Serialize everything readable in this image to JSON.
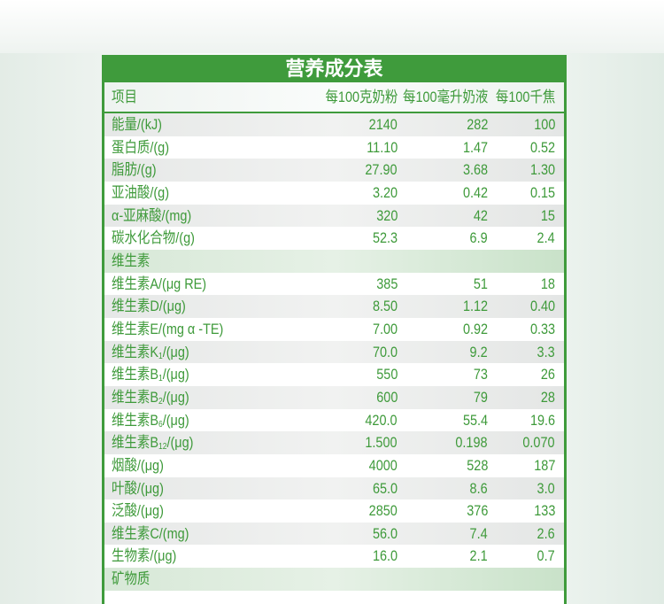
{
  "title": "营养成分表",
  "header": {
    "item": "项目",
    "per100g": "每100克奶粉",
    "per100ml": "每100毫升奶液",
    "per100kj": "每100千焦"
  },
  "rows": [
    {
      "type": "data",
      "label": "能量/(kJ)",
      "v1": "2140",
      "v2": "282",
      "v3": "100"
    },
    {
      "type": "data",
      "label": "蛋白质/(g)",
      "v1": "11.10",
      "v2": "1.47",
      "v3": "0.52"
    },
    {
      "type": "data",
      "label": "脂肪/(g)",
      "v1": "27.90",
      "v2": "3.68",
      "v3": "1.30"
    },
    {
      "type": "data",
      "label": "亚油酸/(g)",
      "v1": "3.20",
      "v2": "0.42",
      "v3": "0.15"
    },
    {
      "type": "data",
      "label": "α-亚麻酸/(mg)",
      "v1": "320",
      "v2": "42",
      "v3": "15"
    },
    {
      "type": "data",
      "label": "碳水化合物/(g)",
      "v1": "52.3",
      "v2": "6.9",
      "v3": "2.4"
    },
    {
      "type": "section",
      "label": "维生素"
    },
    {
      "type": "data",
      "label": "维生素A/(μg RE)",
      "v1": "385",
      "v2": "51",
      "v3": "18"
    },
    {
      "type": "data",
      "label": "维生素D/(μg)",
      "v1": "8.50",
      "v2": "1.12",
      "v3": "0.40"
    },
    {
      "type": "data",
      "label": "维生素E/(mg α -TE)",
      "v1": "7.00",
      "v2": "0.92",
      "v3": "0.33"
    },
    {
      "type": "data",
      "label": "维生素K",
      "sub": "1",
      "unit": "/(μg)",
      "v1": "70.0",
      "v2": "9.2",
      "v3": "3.3"
    },
    {
      "type": "data",
      "label": "维生素B",
      "sub": "1",
      "unit": "/(μg)",
      "v1": "550",
      "v2": "73",
      "v3": "26"
    },
    {
      "type": "data",
      "label": "维生素B",
      "sub": "2",
      "unit": "/(μg)",
      "v1": "600",
      "v2": "79",
      "v3": "28"
    },
    {
      "type": "data",
      "label": "维生素B",
      "sub": "6",
      "unit": "/(μg)",
      "v1": "420.0",
      "v2": "55.4",
      "v3": "19.6"
    },
    {
      "type": "data",
      "label": "维生素B",
      "sub": "12",
      "unit": "/(μg)",
      "v1": "1.500",
      "v2": "0.198",
      "v3": "0.070"
    },
    {
      "type": "data",
      "label": "烟酸/(μg)",
      "v1": "4000",
      "v2": "528",
      "v3": "187"
    },
    {
      "type": "data",
      "label": "叶酸/(μg)",
      "v1": "65.0",
      "v2": "8.6",
      "v3": "3.0"
    },
    {
      "type": "data",
      "label": "泛酸/(μg)",
      "v1": "2850",
      "v2": "376",
      "v3": "133"
    },
    {
      "type": "data",
      "label": "维生素C/(mg)",
      "v1": "56.0",
      "v2": "7.4",
      "v3": "2.6"
    },
    {
      "type": "data",
      "label": "生物素/(μg)",
      "v1": "16.0",
      "v2": "2.1",
      "v3": "0.7"
    },
    {
      "type": "section",
      "label": "矿物质"
    }
  ],
  "colors": {
    "brand_green": "#3f9b3c",
    "text_green": "#3e9a3a"
  }
}
